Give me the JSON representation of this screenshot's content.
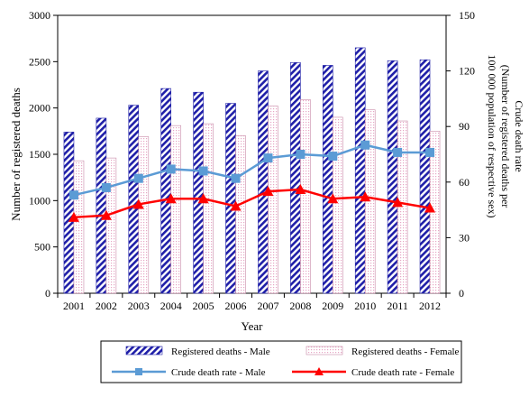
{
  "chart_data": {
    "type": "bar",
    "categories": [
      "2001",
      "2002",
      "2003",
      "2004",
      "2005",
      "2006",
      "2007",
      "2008",
      "2009",
      "2010",
      "2011",
      "2012"
    ],
    "xlabel": "Year",
    "ylabel": "Number of registered deaths",
    "ylabel_right": [
      "Crude death rate",
      "(Number of registered deaths per",
      "100 000 population of respective sex)"
    ],
    "ylim": [
      0,
      3000
    ],
    "ylim_right": [
      0,
      150
    ],
    "yticks": [
      "0",
      "500",
      "1000",
      "1500",
      "2000",
      "2500",
      "3000"
    ],
    "yticks_right": [
      "0",
      "30",
      "60",
      "90",
      "120",
      "150"
    ],
    "grid": false,
    "legend_position": "bottom",
    "bar_series": [
      {
        "name": "Registered deaths - Male",
        "values": [
          1740,
          1890,
          2030,
          2210,
          2170,
          2050,
          2400,
          2490,
          2460,
          2650,
          2510,
          2520
        ]
      },
      {
        "name": "Registered deaths - Female",
        "values": [
          1430,
          1460,
          1690,
          1810,
          1830,
          1700,
          2020,
          2090,
          1900,
          1980,
          1860,
          1750
        ]
      }
    ],
    "line_series": [
      {
        "name": "Crude death rate - Male",
        "values": [
          53,
          57,
          62,
          67,
          66,
          62,
          73,
          75,
          74,
          80,
          76,
          76
        ],
        "color": "#5b9bd5",
        "marker": "square"
      },
      {
        "name": "Crude death rate - Female",
        "values": [
          41,
          42,
          48,
          51,
          51,
          47,
          55,
          56,
          51,
          52,
          49,
          46
        ],
        "color": "#ff0000",
        "marker": "triangle"
      }
    ]
  }
}
